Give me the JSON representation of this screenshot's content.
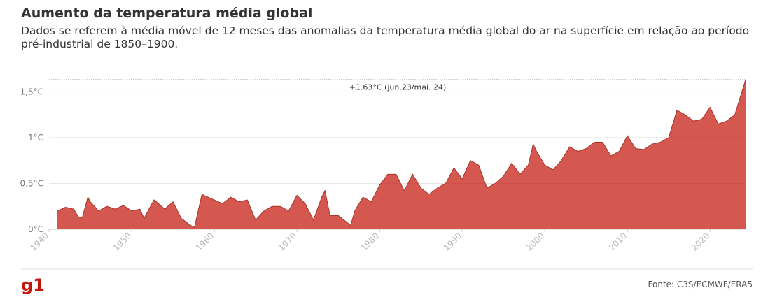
{
  "chart_data": {
    "type": "area",
    "title": "Aumento da temperatura média global",
    "subtitle": "Dados se referem à média móvel de 12 meses das anomalias da temperatura média global do ar na superfície em relação ao período pré-industrial de 1850–1900.",
    "source": "Fonte: C3S/ECMWF/ERA5",
    "annotation": {
      "value": 1.63,
      "label": "+1.63°C (jun.23/mai. 24)"
    },
    "color": "#c4170c",
    "x": [
      1941,
      1942,
      1943,
      1943.5,
      1944,
      1944.7,
      1945,
      1946,
      1947,
      1948,
      1949,
      1950,
      1951,
      1951.5,
      1952.7,
      1953,
      1954,
      1955,
      1956,
      1957,
      1957.6,
      1958.5,
      1959,
      1960,
      1961,
      1962,
      1963,
      1964,
      1965,
      1966,
      1967,
      1968,
      1969,
      1970,
      1971,
      1972,
      1973,
      1973.4,
      1974,
      1975,
      1976,
      1976.5,
      1977,
      1978,
      1979,
      1980,
      1981,
      1982,
      1983,
      1984,
      1985,
      1986,
      1987,
      1988,
      1989,
      1990,
      1991,
      1992,
      1993,
      1994,
      1995,
      1996,
      1997,
      1998,
      1998.6,
      1999,
      2000,
      2001,
      2002,
      2003,
      2004,
      2005,
      2006,
      2007,
      2008,
      2009,
      2010,
      2011,
      2012,
      2013,
      2014,
      2015,
      2016,
      2017,
      2018,
      2019,
      2020,
      2021,
      2022,
      2023,
      2024.3
    ],
    "values": [
      0.2,
      0.24,
      0.22,
      0.14,
      0.12,
      0.35,
      0.3,
      0.2,
      0.25,
      0.22,
      0.26,
      0.2,
      0.22,
      0.12,
      0.32,
      0.3,
      0.22,
      0.3,
      0.12,
      0.05,
      0.02,
      0.38,
      0.36,
      0.32,
      0.28,
      0.35,
      0.3,
      0.32,
      0.1,
      0.2,
      0.25,
      0.25,
      0.2,
      0.37,
      0.28,
      0.1,
      0.35,
      0.42,
      0.15,
      0.15,
      0.08,
      0.04,
      0.2,
      0.35,
      0.3,
      0.48,
      0.6,
      0.6,
      0.42,
      0.6,
      0.45,
      0.38,
      0.45,
      0.5,
      0.67,
      0.55,
      0.75,
      0.7,
      0.45,
      0.5,
      0.58,
      0.72,
      0.6,
      0.7,
      0.93,
      0.85,
      0.7,
      0.65,
      0.75,
      0.9,
      0.85,
      0.88,
      0.95,
      0.95,
      0.8,
      0.85,
      1.02,
      0.88,
      0.87,
      0.93,
      0.95,
      1.0,
      1.3,
      1.25,
      1.18,
      1.2,
      1.33,
      1.15,
      1.18,
      1.25,
      1.63
    ],
    "xlim": [
      1940,
      2024.3
    ],
    "xticks": [
      1940,
      1950,
      1960,
      1970,
      1980,
      1990,
      2000,
      2010,
      2020
    ],
    "ylim": [
      0,
      1.8
    ],
    "yticks": [
      {
        "value": 0,
        "label": "0°C"
      },
      {
        "value": 0.5,
        "label": "0,5°C"
      },
      {
        "value": 1,
        "label": "1°C"
      },
      {
        "value": 1.5,
        "label": "1,5°C"
      }
    ],
    "grid": true
  },
  "logo": "g1"
}
